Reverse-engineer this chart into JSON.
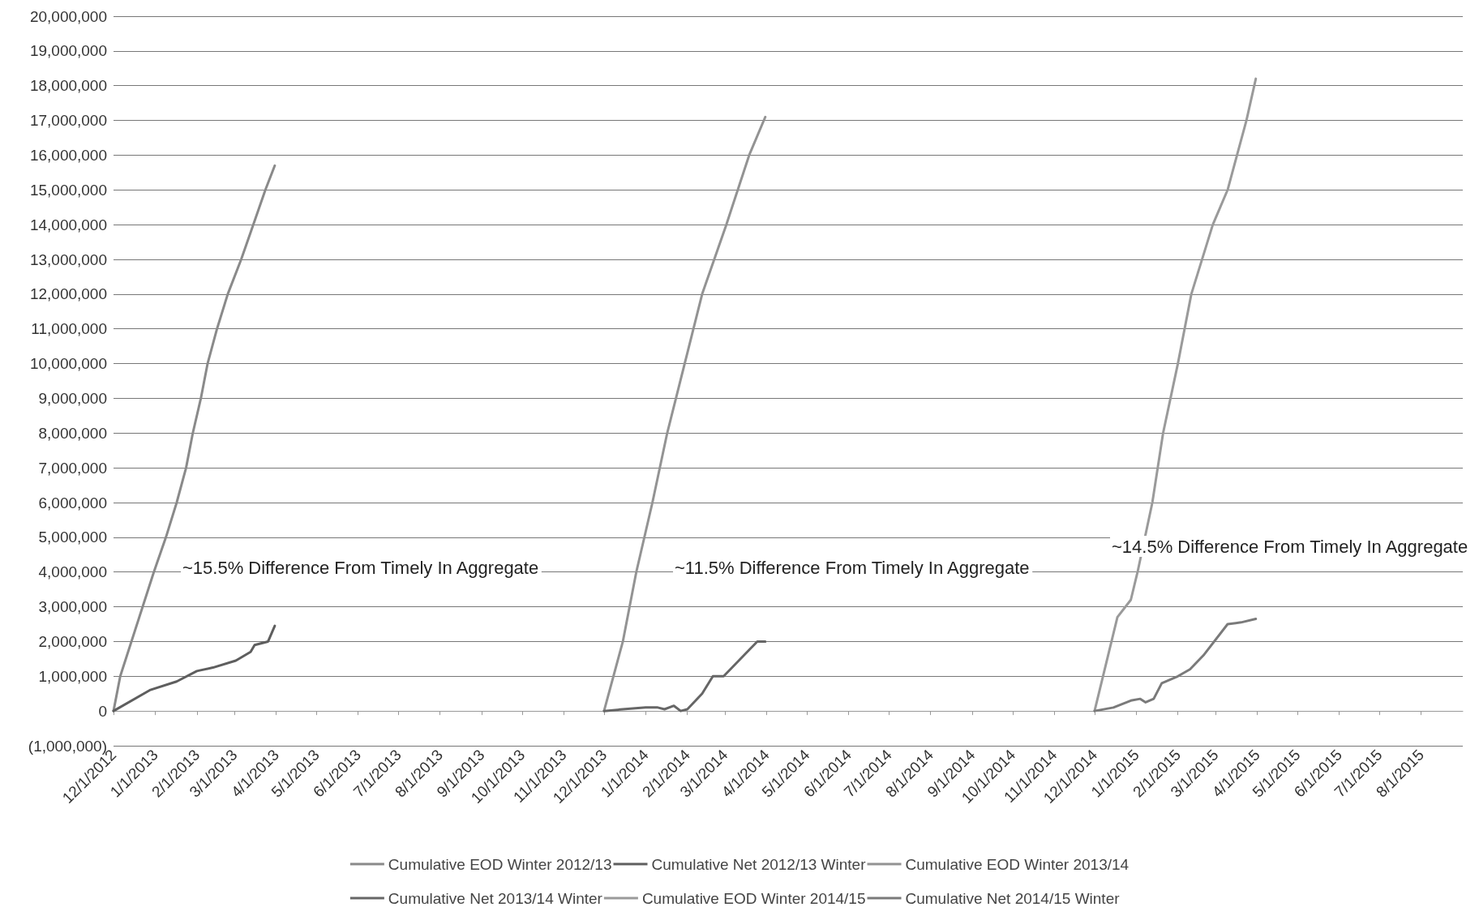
{
  "chart_data": {
    "type": "line",
    "legend": "bottom",
    "grid": "y",
    "marker": "none",
    "line_style": "solid",
    "xlim": [
      "2012-12-01",
      "2015-09-01"
    ],
    "xticks": [
      {
        "value": "2012-12-01",
        "label": "12/1/2012"
      },
      {
        "value": "2013-01-01",
        "label": "1/1/2013"
      },
      {
        "value": "2013-02-01",
        "label": "2/1/2013"
      },
      {
        "value": "2013-03-01",
        "label": "3/1/2013"
      },
      {
        "value": "2013-04-01",
        "label": "4/1/2013"
      },
      {
        "value": "2013-05-01",
        "label": "5/1/2013"
      },
      {
        "value": "2013-06-01",
        "label": "6/1/2013"
      },
      {
        "value": "2013-07-01",
        "label": "7/1/2013"
      },
      {
        "value": "2013-08-01",
        "label": "8/1/2013"
      },
      {
        "value": "2013-09-01",
        "label": "9/1/2013"
      },
      {
        "value": "2013-10-01",
        "label": "10/1/2013"
      },
      {
        "value": "2013-11-01",
        "label": "11/1/2013"
      },
      {
        "value": "2013-12-01",
        "label": "12/1/2013"
      },
      {
        "value": "2014-01-01",
        "label": "1/1/2014"
      },
      {
        "value": "2014-02-01",
        "label": "2/1/2014"
      },
      {
        "value": "2014-03-01",
        "label": "3/1/2014"
      },
      {
        "value": "2014-04-01",
        "label": "4/1/2014"
      },
      {
        "value": "2014-05-01",
        "label": "5/1/2014"
      },
      {
        "value": "2014-06-01",
        "label": "6/1/2014"
      },
      {
        "value": "2014-07-01",
        "label": "7/1/2014"
      },
      {
        "value": "2014-08-01",
        "label": "8/1/2014"
      },
      {
        "value": "2014-09-01",
        "label": "9/1/2014"
      },
      {
        "value": "2014-10-01",
        "label": "10/1/2014"
      },
      {
        "value": "2014-11-01",
        "label": "11/1/2014"
      },
      {
        "value": "2014-12-01",
        "label": "12/1/2014"
      },
      {
        "value": "2015-01-01",
        "label": "1/1/2015"
      },
      {
        "value": "2015-02-01",
        "label": "2/1/2015"
      },
      {
        "value": "2015-03-01",
        "label": "3/1/2015"
      },
      {
        "value": "2015-04-01",
        "label": "4/1/2015"
      },
      {
        "value": "2015-05-01",
        "label": "5/1/2015"
      },
      {
        "value": "2015-06-01",
        "label": "6/1/2015"
      },
      {
        "value": "2015-07-01",
        "label": "7/1/2015"
      },
      {
        "value": "2015-08-01",
        "label": "8/1/2015"
      }
    ],
    "ylim": [
      -1000000,
      20000000
    ],
    "yticks": [
      {
        "value": -1000000,
        "label": "(1,000,000)"
      },
      {
        "value": 0,
        "label": "0"
      },
      {
        "value": 1000000,
        "label": "1,000,000"
      },
      {
        "value": 2000000,
        "label": "2,000,000"
      },
      {
        "value": 3000000,
        "label": "3,000,000"
      },
      {
        "value": 4000000,
        "label": "4,000,000"
      },
      {
        "value": 5000000,
        "label": "5,000,000"
      },
      {
        "value": 6000000,
        "label": "6,000,000"
      },
      {
        "value": 7000000,
        "label": "7,000,000"
      },
      {
        "value": 8000000,
        "label": "8,000,000"
      },
      {
        "value": 9000000,
        "label": "9,000,000"
      },
      {
        "value": 10000000,
        "label": "10,000,000"
      },
      {
        "value": 11000000,
        "label": "11,000,000"
      },
      {
        "value": 12000000,
        "label": "12,000,000"
      },
      {
        "value": 13000000,
        "label": "13,000,000"
      },
      {
        "value": 14000000,
        "label": "14,000,000"
      },
      {
        "value": 15000000,
        "label": "15,000,000"
      },
      {
        "value": 16000000,
        "label": "16,000,000"
      },
      {
        "value": 17000000,
        "label": "17,000,000"
      },
      {
        "value": 18000000,
        "label": "18,000,000"
      },
      {
        "value": 19000000,
        "label": "19,000,000"
      },
      {
        "value": 20000000,
        "label": "20,000,000"
      }
    ],
    "annotations": [
      "~15.5% Difference From Timely In Aggregate",
      "~11.5% Difference From Timely In Aggregate",
      "~14.5% Difference From Timely In Aggregate"
    ],
    "series": [
      {
        "name": "Cumulative EOD Winter 2012/13",
        "color": "#8a8a8a",
        "x": [
          "2012-12-01",
          "2012-12-06",
          "2012-12-31",
          "2013-01-09",
          "2013-01-17",
          "2013-01-24",
          "2013-01-29",
          "2013-02-04",
          "2013-02-09",
          "2013-02-16",
          "2013-02-24",
          "2013-03-06",
          "2013-03-15",
          "2013-03-24",
          "2013-03-31"
        ],
        "values": [
          0,
          1000000,
          4000000,
          5000000,
          6000000,
          7000000,
          8000000,
          9000000,
          10000000,
          11000000,
          12000000,
          13000000,
          14000000,
          15000000,
          15700000
        ]
      },
      {
        "name": "Cumulative Net 2012/13 Winter",
        "color": "#5e5e5e",
        "x": [
          "2012-12-01",
          "2012-12-28",
          "2013-01-17",
          "2013-02-01",
          "2013-02-13",
          "2013-03-02",
          "2013-03-13",
          "2013-03-16",
          "2013-03-26",
          "2013-03-31"
        ],
        "values": [
          0,
          600000,
          850000,
          1150000,
          1250000,
          1450000,
          1700000,
          1900000,
          2000000,
          2450000
        ]
      },
      {
        "name": "Cumulative EOD Winter 2013/14",
        "color": "#939393",
        "x": [
          "2013-12-01",
          "2013-12-15",
          "2013-12-25",
          "2014-01-06",
          "2014-01-17",
          "2014-01-30",
          "2014-02-12",
          "2014-03-02",
          "2014-03-19",
          "2014-03-31"
        ],
        "values": [
          0,
          2000000,
          4000000,
          6000000,
          8000000,
          10000000,
          12000000,
          14000000,
          16000000,
          17100000
        ]
      },
      {
        "name": "Cumulative Net 2013/14 Winter",
        "color": "#666666",
        "x": [
          "2013-12-01",
          "2013-12-15",
          "2014-01-01",
          "2014-01-10",
          "2014-01-15",
          "2014-01-22",
          "2014-01-27",
          "2014-02-01",
          "2014-02-12",
          "2014-02-20",
          "2014-02-28",
          "2014-03-25",
          "2014-03-31"
        ],
        "values": [
          0,
          50000,
          100000,
          100000,
          50000,
          150000,
          0,
          50000,
          500000,
          1000000,
          1000000,
          2000000,
          2000000
        ]
      },
      {
        "name": "Cumulative EOD Winter 2014/15",
        "color": "#9a9a9a",
        "x": [
          "2014-12-01",
          "2014-12-18",
          "2014-12-28",
          "2015-01-02",
          "2015-01-13",
          "2015-01-21",
          "2015-02-01",
          "2015-02-11",
          "2015-02-27",
          "2015-03-10",
          "2015-03-17",
          "2015-03-24",
          "2015-03-31"
        ],
        "values": [
          0,
          2700000,
          3200000,
          4000000,
          6000000,
          8000000,
          10000000,
          12000000,
          14000000,
          15000000,
          16000000,
          17000000,
          18200000
        ]
      },
      {
        "name": "Cumulative Net 2014/15 Winter",
        "color": "#7a7a7a",
        "x": [
          "2014-12-01",
          "2014-12-15",
          "2014-12-28",
          "2015-01-04",
          "2015-01-08",
          "2015-01-14",
          "2015-01-20",
          "2015-02-01",
          "2015-02-10",
          "2015-02-20",
          "2015-03-10",
          "2015-03-20",
          "2015-03-31"
        ],
        "values": [
          0,
          100000,
          300000,
          350000,
          250000,
          350000,
          800000,
          1000000,
          1200000,
          1600000,
          2500000,
          2550000,
          2650000
        ]
      }
    ]
  }
}
